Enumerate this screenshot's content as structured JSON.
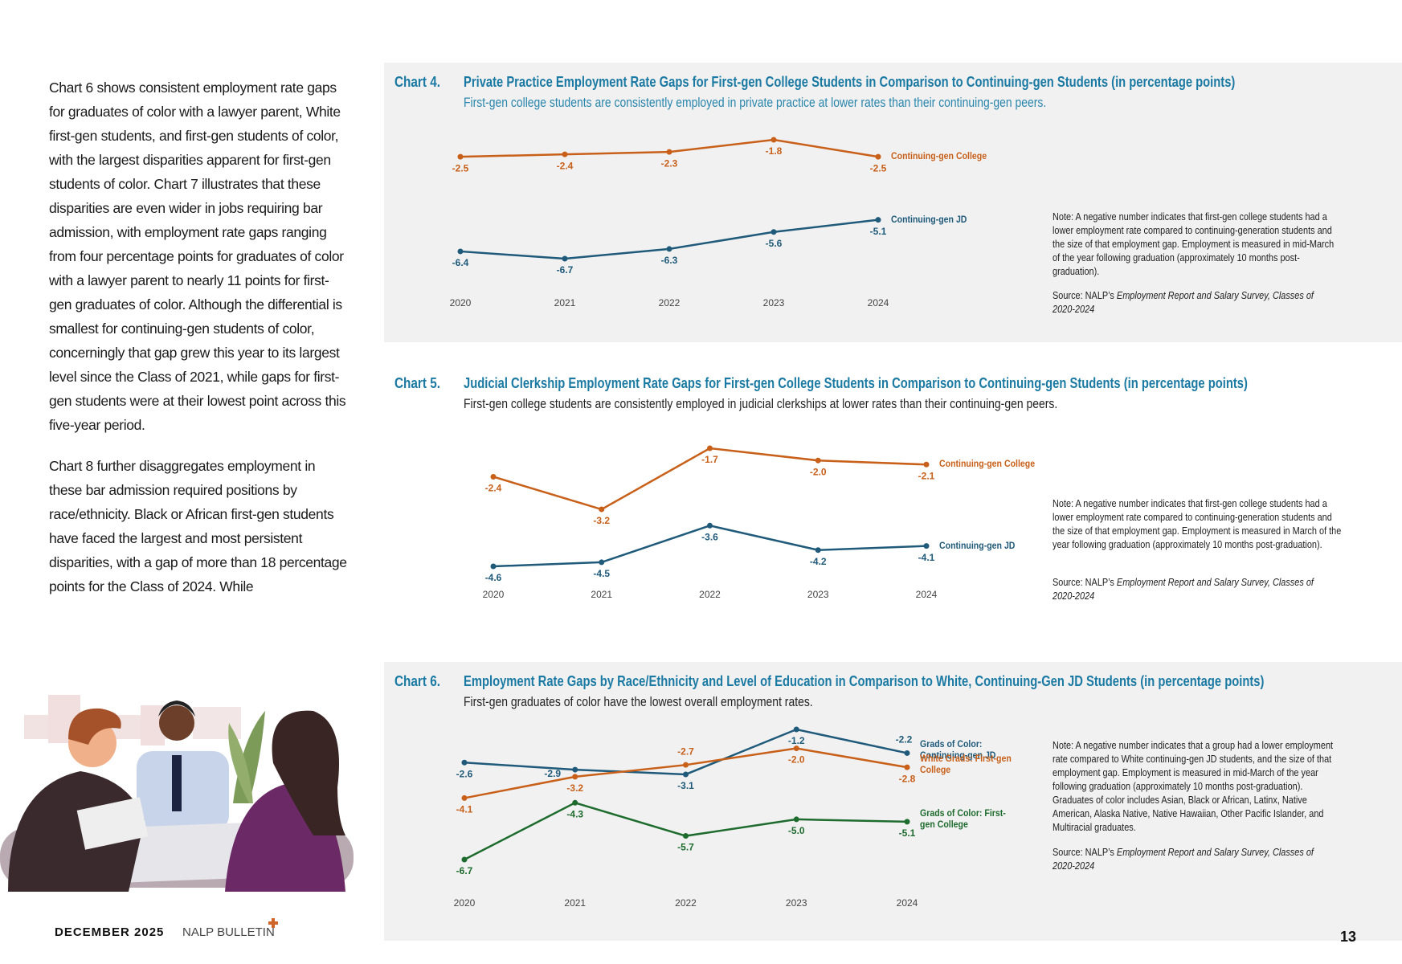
{
  "text": {
    "paragraphs": [
      "Chart 6 shows consistent employment rate gaps for graduates of color with a lawyer parent, White first-gen students, and first-gen students of color, with the largest disparities apparent for first-gen students of color. Chart 7 illustrates that these disparities are even wider in jobs requiring bar admission, with employment rate gaps ranging from four percentage points for graduates of color with a lawyer parent to nearly 11 points for first-gen graduates of color. Although the differential is smallest for continuing-gen students of color, concerningly that gap grew this year to its largest level since the Class of 2021, while gaps for first-gen students were at their lowest point across this five-year period.",
      "Chart 8 further disaggregates employment in these bar admission required positions by race/ethnicity. Black or African first-gen students have faced the largest and most persistent disparities, with a gap of more than 18 percentage points for the Class of 2024. While"
    ]
  },
  "chart_data": [
    {
      "type": "line",
      "label": "Chart 4.",
      "title": "Private Practice Employment Rate Gaps for First-gen College Students in Comparison to Continuing-gen Students (in percentage points)",
      "subtitle": "First-gen college students are consistently employed in private practice at lower rates than their continuing-gen peers.",
      "categories": [
        "2020",
        "2021",
        "2022",
        "2023",
        "2024"
      ],
      "series": [
        {
          "name": "Continuing-gen College",
          "color": "#c8601a",
          "values": [
            -2.5,
            -2.4,
            -2.3,
            -1.8,
            -2.5
          ]
        },
        {
          "name": "Continuing-gen JD",
          "color": "#1f5a7a",
          "values": [
            -6.4,
            -6.7,
            -6.3,
            -5.6,
            -5.1
          ]
        }
      ],
      "note": "Note: A negative number indicates that first-gen college students had a lower employment rate compared to continuing-generation students and the size of that employment gap. Employment is measured in mid-March of the year following graduation (approximately 10 months post-graduation).",
      "source_prefix": "Source: NALP’s",
      "source_title": "Employment Report and Salary Survey, Classes of 2020-2024"
    },
    {
      "type": "line",
      "label": "Chart 5.",
      "title": "Judicial Clerkship Employment Rate Gaps for First-gen College Students in Comparison to Continuing-gen Students (in percentage points)",
      "subtitle": "First-gen college students are consistently employed in judicial clerkships at lower rates than their continuing-gen peers.",
      "categories": [
        "2020",
        "2021",
        "2022",
        "2023",
        "2024"
      ],
      "series": [
        {
          "name": "Continuing-gen College",
          "color": "#c8601a",
          "values": [
            -2.4,
            -3.2,
            -1.7,
            -2.0,
            -2.1
          ],
          "value_labels": [
            "-2.4",
            "-3.2",
            "-1.7",
            "-2.0",
            "-2.1"
          ]
        },
        {
          "name": "Continuing-gen JD",
          "color": "#1f5a7a",
          "values": [
            -4.6,
            -4.5,
            -3.6,
            -4.2,
            -4.1
          ]
        }
      ],
      "note": "Note: A negative number indicates that first-gen college students had a lower employment rate compared to continuing-generation students and the size of that employment gap. Employment is measured in March of the year following graduation (approximately 10 months post-graduation).",
      "source_prefix": "Source: NALP’s",
      "source_title": "Employment Report and Salary Survey, Classes of 2020-2024"
    },
    {
      "type": "line",
      "label": "Chart 6.",
      "title": "Employment Rate Gaps by Race/Ethnicity and Level of Education in Comparison to White, Continuing-Gen JD Students (in percentage points)",
      "subtitle": "First-gen graduates of color have the lowest overall employment rates.",
      "categories": [
        "2020",
        "2021",
        "2022",
        "2023",
        "2024"
      ],
      "series": [
        {
          "name": "Grads of Color: Continuing-gen JD",
          "color": "#1f5a7a",
          "values": [
            -2.6,
            -2.9,
            -3.1,
            -1.2,
            -2.2
          ]
        },
        {
          "name": "White Grads: First-gen College",
          "color": "#c8601a",
          "values": [
            -4.1,
            -3.2,
            -2.7,
            -2.0,
            -2.8
          ],
          "value_labels": [
            "-4.1",
            "-3.2",
            "-2.7",
            "-2.0",
            "-2.8"
          ]
        },
        {
          "name": "Grads of Color: First-gen College",
          "color": "#1e6b2e",
          "values": [
            -6.7,
            -4.3,
            -5.7,
            -5.0,
            -5.1
          ],
          "value_labels": [
            "-6.7",
            "-4.3",
            "-5.7",
            "-5.0",
            "-5.1"
          ]
        }
      ],
      "note": "Note: A negative number indicates that a group had a lower employment rate compared to White continuing-gen JD students, and the size of that employment gap. Employment is measured in mid-March of the year following graduation (approximately 10 months post-graduation). Graduates of color includes Asian, Black or African, Latinx, Native American, Alaska Native, Native Hawaiian, Other Pacific Islander, and Multiracial graduates.",
      "source_prefix": "Source: NALP’s",
      "source_title": "Employment Report and Salary Survey, Classes of 2020-2024"
    }
  ],
  "footer": {
    "date": "DECEMBER 2025",
    "publication": "NALP BULLETIN",
    "page": "13"
  }
}
